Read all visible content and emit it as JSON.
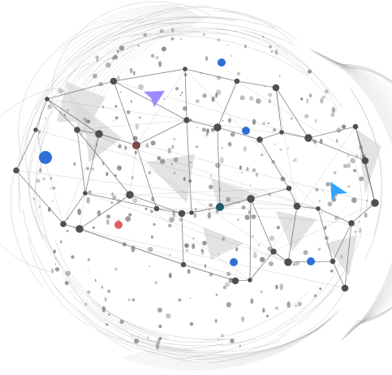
{
  "colors": {
    "background": "#ffffff",
    "line": "#5a5a5a",
    "node": "#4f4f4f",
    "dot": "#7b7b7b",
    "mesh": "#9a9a9a",
    "facet": "#d9d9d9",
    "accent_blue": "#2f6fd6",
    "accent_teal": "#1f5a68",
    "accent_red": "#e06060",
    "accent_brown": "#7a4a48",
    "pointer_purple": "#9b8cff",
    "pointer_blue": "#2fa3ff"
  },
  "icons": {
    "pointer_left": "cursor-arrow-icon",
    "pointer_right": "cursor-arrow-icon"
  }
}
